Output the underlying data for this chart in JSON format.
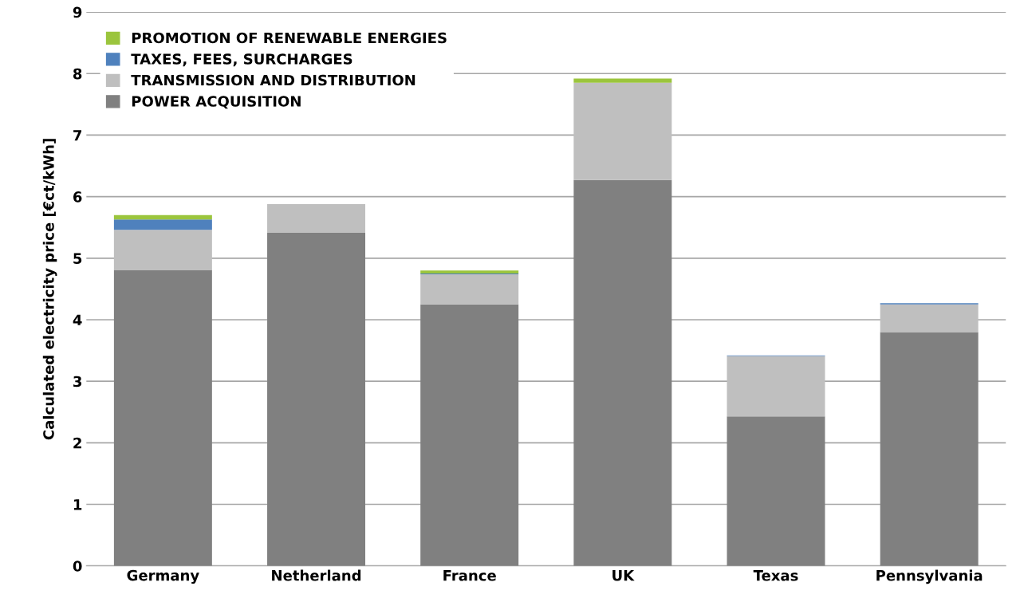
{
  "chart_data": {
    "type": "bar",
    "stacked": true,
    "ylabel": "Calculated electricity price [€ct/kWh]",
    "categories": [
      "Germany",
      "Netherland",
      "France",
      "UK",
      "Texas",
      "Pennsylvania"
    ],
    "series": [
      {
        "name": "POWER ACQUISITION",
        "color": "#808080",
        "values": [
          4.81,
          5.42,
          4.25,
          6.27,
          2.43,
          3.8
        ]
      },
      {
        "name": "TRANSMISSION AND DISTRIBUTION",
        "color": "#bfbfbf",
        "values": [
          0.65,
          0.46,
          0.49,
          1.58,
          0.98,
          0.45
        ]
      },
      {
        "name": "TAXES, FEES, SURCHARGES",
        "color": "#4f81bd",
        "values": [
          0.17,
          null,
          0.01,
          null,
          0.01,
          0.02
        ]
      },
      {
        "name": "PROMOTION OF RENEWABLE ENERGIES",
        "color": "#9bc53d",
        "values": [
          0.07,
          null,
          0.05,
          0.07,
          null,
          null
        ]
      }
    ],
    "ylim": [
      0,
      9
    ],
    "yticks": [
      0,
      1,
      2,
      3,
      4,
      5,
      6,
      7,
      8,
      9
    ],
    "grid": "y",
    "legend": "top left"
  }
}
